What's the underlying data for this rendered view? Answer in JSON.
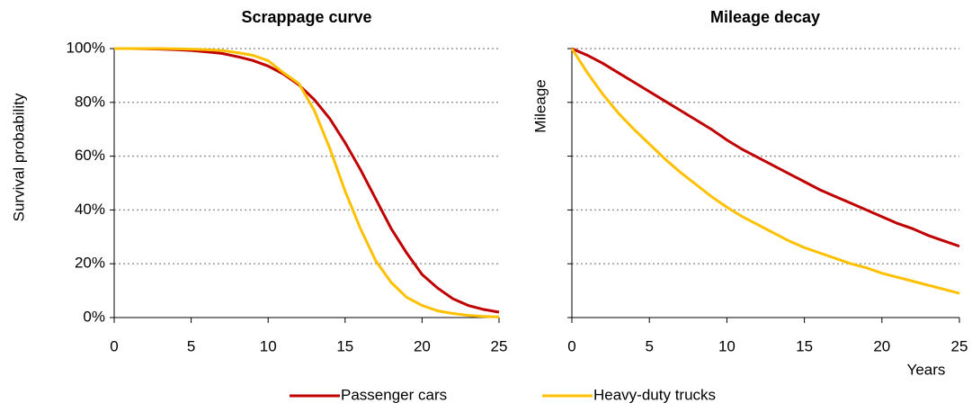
{
  "chart_data": [
    {
      "type": "line",
      "title": "Scrappage curve",
      "y_label": "Survival probability",
      "x": [
        0,
        1,
        2,
        3,
        4,
        5,
        6,
        7,
        8,
        9,
        10,
        11,
        12,
        13,
        14,
        15,
        16,
        17,
        18,
        19,
        20,
        21,
        22,
        23,
        24,
        25
      ],
      "series": [
        {
          "name": "Passenger cars",
          "color": "#c00000",
          "values": [
            100,
            100,
            99.9,
            99.8,
            99.6,
            99.3,
            98.8,
            98.2,
            97,
            95.6,
            93.5,
            90.5,
            86.5,
            81,
            74,
            65,
            55,
            44,
            33,
            24,
            16,
            11,
            7,
            4.5,
            3,
            2
          ]
        },
        {
          "name": "Heavy-duty trucks",
          "color": "#ffc000",
          "values": [
            100,
            100,
            100,
            100,
            99.9,
            99.8,
            99.6,
            99.3,
            98.5,
            97.5,
            95.5,
            91,
            87,
            77,
            63,
            47,
            33,
            21,
            13,
            7.5,
            4.5,
            2.5,
            1.5,
            0.8,
            0.4,
            0.2
          ]
        }
      ],
      "xlim": [
        0,
        25
      ],
      "xticks": [
        0,
        5,
        10,
        15,
        20,
        25
      ],
      "ylim": [
        0,
        100
      ],
      "yticks": [
        {
          "value": 0,
          "label": "0%"
        },
        {
          "value": 20,
          "label": "20%"
        },
        {
          "value": 40,
          "label": "40%"
        },
        {
          "value": 60,
          "label": "60%"
        },
        {
          "value": 80,
          "label": "80%"
        },
        {
          "value": 100,
          "label": "100%"
        }
      ],
      "grid": true
    },
    {
      "type": "line",
      "title": "Mileage decay",
      "y_label": "Mileage",
      "x_label": "Years",
      "x": [
        0,
        1,
        2,
        3,
        4,
        5,
        6,
        7,
        8,
        9,
        10,
        11,
        12,
        13,
        14,
        15,
        16,
        17,
        18,
        19,
        20,
        21,
        22,
        23,
        24,
        25
      ],
      "series": [
        {
          "color": "#c00000",
          "values": [
            100,
            97.5,
            94.5,
            91,
            87.5,
            84,
            80.5,
            77,
            73.5,
            70,
            66,
            62.5,
            59.5,
            56.5,
            53.5,
            50.5,
            47.5,
            45,
            42.5,
            40,
            37.5,
            35,
            33,
            30.5,
            28.5,
            26.5
          ]
        },
        {
          "color": "#ffc000",
          "values": [
            100,
            91,
            83,
            76,
            70,
            64.5,
            59,
            54,
            49.5,
            45,
            41,
            37.5,
            34.5,
            31.5,
            28.5,
            26,
            24,
            22,
            20,
            18.5,
            16.5,
            15,
            13.5,
            12,
            10.5,
            9
          ]
        }
      ],
      "xlim": [
        0,
        25
      ],
      "xticks": [
        0,
        5,
        10,
        15,
        20,
        25
      ],
      "ylim": [
        0,
        100
      ],
      "yticks": [
        0,
        20,
        40,
        60,
        80,
        100
      ],
      "grid": true
    }
  ]
}
